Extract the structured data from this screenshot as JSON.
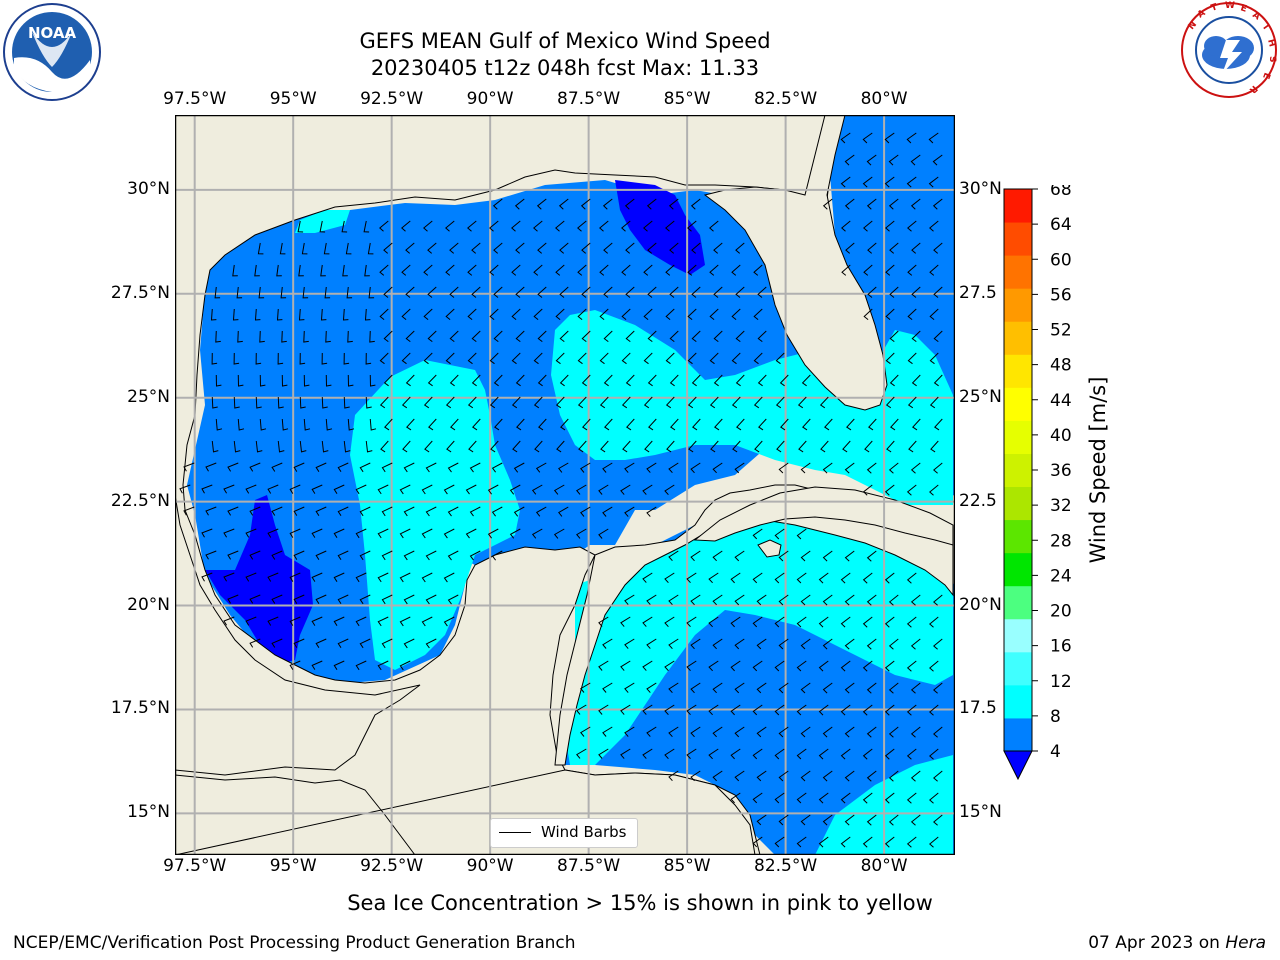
{
  "title": {
    "line1": "GEFS MEAN Gulf of Mexico Wind Speed",
    "line2": "20230405 t12z 048h fcst   Max: 11.33"
  },
  "logos": {
    "left": {
      "name": "noaa-logo",
      "text": "NOAA",
      "ring_text": "NATIONAL OCEANIC AND ATMOSPHERIC ADMINISTRATION · U.S. DEPARTMENT OF COMMERCE"
    },
    "right": {
      "name": "nws-logo",
      "ring_text": "NATIONAL WEATHER SERVICE"
    }
  },
  "axes": {
    "lon_labels": [
      "97.5°W",
      "95°W",
      "92.5°W",
      "90°W",
      "87.5°W",
      "85°W",
      "82.5°W",
      "80°W"
    ],
    "lon_values": [
      -97.5,
      -95,
      -92.5,
      -90,
      -87.5,
      -85,
      -82.5,
      -80
    ],
    "lat_labels": [
      "30°N",
      "27.5°N",
      "25°N",
      "22.5°N",
      "20°N",
      "17.5°N",
      "15°N"
    ],
    "lat_values": [
      30,
      27.5,
      25,
      22.5,
      20,
      17.5,
      15
    ],
    "right_lat_labels": [
      "30°N",
      "27.5",
      "25°N",
      "22.5",
      "20°N",
      "17.5",
      "15°N"
    ],
    "extent": {
      "lon_min": -98,
      "lon_max": -78.2,
      "lat_min": 14,
      "lat_max": 31.8
    }
  },
  "legend": {
    "label": "Wind Barbs"
  },
  "colorbar": {
    "label": "Wind Speed [m/s]",
    "ticks": [
      "4",
      "8",
      "12",
      "16",
      "20",
      "24",
      "28",
      "32",
      "36",
      "40",
      "44",
      "48",
      "52",
      "56",
      "60",
      "64",
      "68"
    ],
    "colors": [
      "#0080ff",
      "#00ffff",
      "#40ffff",
      "#99ffff",
      "#4cff80",
      "#00e600",
      "#5ce600",
      "#ace600",
      "#cdf200",
      "#e6ff00",
      "#ffff00",
      "#ffe600",
      "#ffbf00",
      "#ff9900",
      "#ff7300",
      "#ff4c00",
      "#ff1a00"
    ],
    "extend_color": "#0000ff"
  },
  "map_colors": {
    "land": "#efedde",
    "level_4_8": "#0080ff",
    "level_lt4": "#0000ff",
    "level_8_12": "#00ffff",
    "level_12_16": "#40ffff",
    "grid": "#b0b0b0"
  },
  "caption": "Sea Ice Concentration > 15% is shown in pink to yellow",
  "footer": {
    "left": "NCEP/EMC/Verification Post Processing Product Generation Branch",
    "right_date": "07 Apr 2023 on ",
    "right_machine": "Hera"
  }
}
